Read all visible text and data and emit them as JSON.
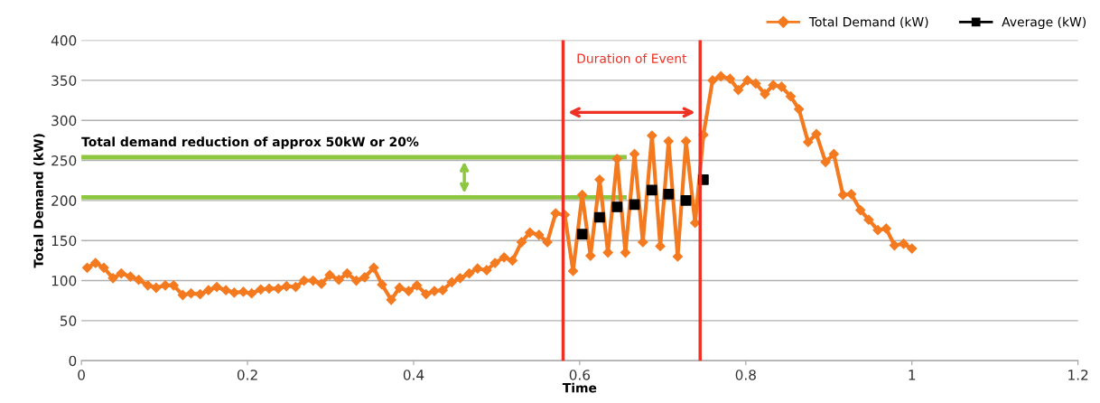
{
  "chart_data": {
    "type": "line",
    "xlabel": "Time",
    "ylabel": "Total Demand (kW)",
    "xlim": [
      0,
      1.2
    ],
    "xticks": [
      0,
      {
        "value": 0.2,
        "label": "0.2"
      },
      {
        "value": 0.4,
        "label": "0.4"
      },
      {
        "value": 0.6,
        "label": "0.6"
      },
      {
        "value": 0.8,
        "label": "0.8"
      },
      1,
      {
        "value": 1.2,
        "label": "1.2"
      }
    ],
    "ylim": [
      0,
      400
    ],
    "yticks": [
      0,
      50,
      100,
      150,
      200,
      250,
      300,
      350,
      400
    ],
    "grid": "y",
    "legend": "top right",
    "marker": "diamond",
    "line_style": "solid",
    "series": [
      {
        "name": "Total Demand (kW)",
        "color": "#f47a20",
        "x": [
          0.007,
          0.017,
          0.027,
          0.038,
          0.048,
          0.059,
          0.069,
          0.08,
          0.09,
          0.101,
          0.111,
          0.122,
          0.132,
          0.143,
          0.153,
          0.163,
          0.174,
          0.184,
          0.195,
          0.205,
          0.216,
          0.226,
          0.237,
          0.247,
          0.258,
          0.268,
          0.279,
          0.289,
          0.299,
          0.31,
          0.32,
          0.331,
          0.341,
          0.352,
          0.362,
          0.373,
          0.383,
          0.394,
          0.404,
          0.415,
          0.425,
          0.435,
          0.446,
          0.456,
          0.467,
          0.477,
          0.488,
          0.498,
          0.509,
          0.519,
          0.53,
          0.54,
          0.551,
          0.561,
          0.571,
          0.582,
          0.592,
          0.603,
          0.613,
          0.624,
          0.634,
          0.645,
          0.655,
          0.666,
          0.676,
          0.687,
          0.697,
          0.707,
          0.718,
          0.728,
          0.739,
          0.749,
          0.76,
          0.77,
          0.781,
          0.791,
          0.802,
          0.812,
          0.823,
          0.833,
          0.843,
          0.854,
          0.864,
          0.875,
          0.885,
          0.896,
          0.906,
          0.917,
          0.927,
          0.938,
          0.948,
          0.959,
          0.969,
          0.979,
          0.99,
          1.0
        ],
        "values": [
          116,
          122,
          116,
          103,
          109,
          105,
          101,
          94,
          91,
          94,
          94,
          82,
          84,
          83,
          88,
          92,
          88,
          85,
          86,
          84,
          89,
          90,
          90,
          93,
          92,
          100,
          100,
          96,
          107,
          101,
          109,
          100,
          104,
          116,
          95,
          76,
          91,
          87,
          94,
          83,
          87,
          88,
          98,
          103,
          109,
          115,
          113,
          122,
          129,
          125,
          148,
          160,
          157,
          148,
          184,
          182,
          112,
          207,
          131,
          226,
          135,
          252,
          135,
          258,
          148,
          281,
          143,
          274,
          130,
          274,
          172,
          282,
          350,
          355,
          352,
          338,
          350,
          346,
          333,
          344,
          342,
          330,
          314,
          273,
          283,
          248,
          258,
          207,
          208,
          188,
          176,
          163,
          165,
          144,
          146,
          140
        ]
      },
      {
        "name": "Average (kW)",
        "color": "#000000",
        "type": "scatter",
        "marker": "square",
        "x": [
          0.603,
          0.624,
          0.645,
          0.666,
          0.687,
          0.707,
          0.728,
          0.749
        ],
        "values": [
          158,
          179,
          192,
          195,
          213,
          208,
          200,
          226
        ]
      },
      {
        "color": "#8dc63f",
        "marker": "none",
        "x": [
          0,
          0.654
        ],
        "values": [
          254,
          254
        ]
      },
      {
        "color": "#8dc63f",
        "marker": "none",
        "x": [
          0,
          0.654
        ],
        "values": [
          204,
          204
        ]
      }
    ],
    "ref_lines": [
      {
        "axis": "x",
        "value": 0.58,
        "color": "#ee3124"
      },
      {
        "axis": "x",
        "value": 0.745,
        "color": "#ee3124"
      }
    ],
    "annotations": [
      "Duration of Event",
      "Total demand reduction of approx 50kW or 20%"
    ]
  }
}
